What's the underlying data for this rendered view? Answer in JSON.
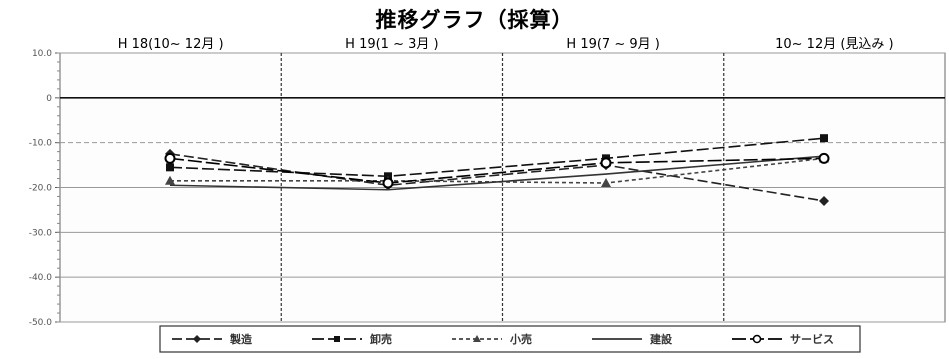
{
  "chart_data": {
    "type": "line",
    "title": "推移グラフ（採算）",
    "categories": [
      "H 18(10~ 12月 )",
      "H 19(1 ~ 3月 )",
      "H 19(7 ~ 9月 )",
      "10~ 12月 (見込み )"
    ],
    "ylim": [
      -50,
      10
    ],
    "yticks": [
      10,
      0,
      -10,
      -20,
      -30,
      -40,
      -50
    ],
    "ytick_labels": [
      "10.0",
      "0",
      "-10.0",
      "-20.0",
      "-30.0",
      "-40.0",
      "-50.0"
    ],
    "grid": true,
    "legend_position": "bottom",
    "series": [
      {
        "name": "製造",
        "values": [
          -12.5,
          -19.5,
          -15.0,
          -23.0
        ],
        "color": "#222222",
        "dash": "10,4",
        "marker": "diamond"
      },
      {
        "name": "卸売",
        "values": [
          -15.5,
          -17.5,
          -13.5,
          -9.0
        ],
        "color": "#111111",
        "dash": "12,4",
        "marker": "square"
      },
      {
        "name": "小売",
        "values": [
          -18.5,
          -18.5,
          -19.0,
          -13.5
        ],
        "color": "#444444",
        "dash": "4,3",
        "marker": "triangle"
      },
      {
        "name": "建設",
        "values": [
          -19.5,
          -20.5,
          -17.0,
          -13.0
        ],
        "color": "#333333",
        "dash": "",
        "marker": "none"
      },
      {
        "name": "サービス",
        "values": [
          -13.5,
          -19.0,
          -14.5,
          -13.5
        ],
        "color": "#000000",
        "dash": "14,4",
        "marker": "circle"
      }
    ]
  }
}
